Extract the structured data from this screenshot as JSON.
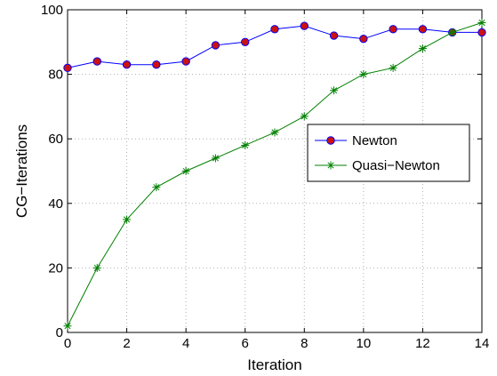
{
  "chart_data": {
    "type": "line",
    "title": "",
    "xlabel": "Iteration",
    "ylabel": "CG−Iterations",
    "xlim": [
      0,
      14
    ],
    "ylim": [
      0,
      100
    ],
    "xticks": [
      "0",
      "2",
      "4",
      "6",
      "8",
      "10",
      "12",
      "14"
    ],
    "yticks": [
      "0",
      "20",
      "40",
      "60",
      "80",
      "100"
    ],
    "grid": true,
    "legend_position": "center-right",
    "x": [
      0,
      1,
      2,
      3,
      4,
      5,
      6,
      7,
      8,
      9,
      10,
      11,
      12,
      13,
      14
    ],
    "series": [
      {
        "name": "Newton",
        "color": "#0000ff",
        "marker": "circle",
        "marker_color": "#cc1111",
        "values": [
          82,
          84,
          83,
          83,
          84,
          89,
          90,
          94,
          95,
          92,
          91,
          94,
          94,
          93,
          93
        ]
      },
      {
        "name": "Quasi−Newton",
        "color": "#008000",
        "marker": "asterisk",
        "marker_color": "#008000",
        "values": [
          2,
          20,
          35,
          45,
          50,
          54,
          58,
          62,
          67,
          75,
          80,
          82,
          88,
          93,
          96
        ]
      }
    ]
  }
}
